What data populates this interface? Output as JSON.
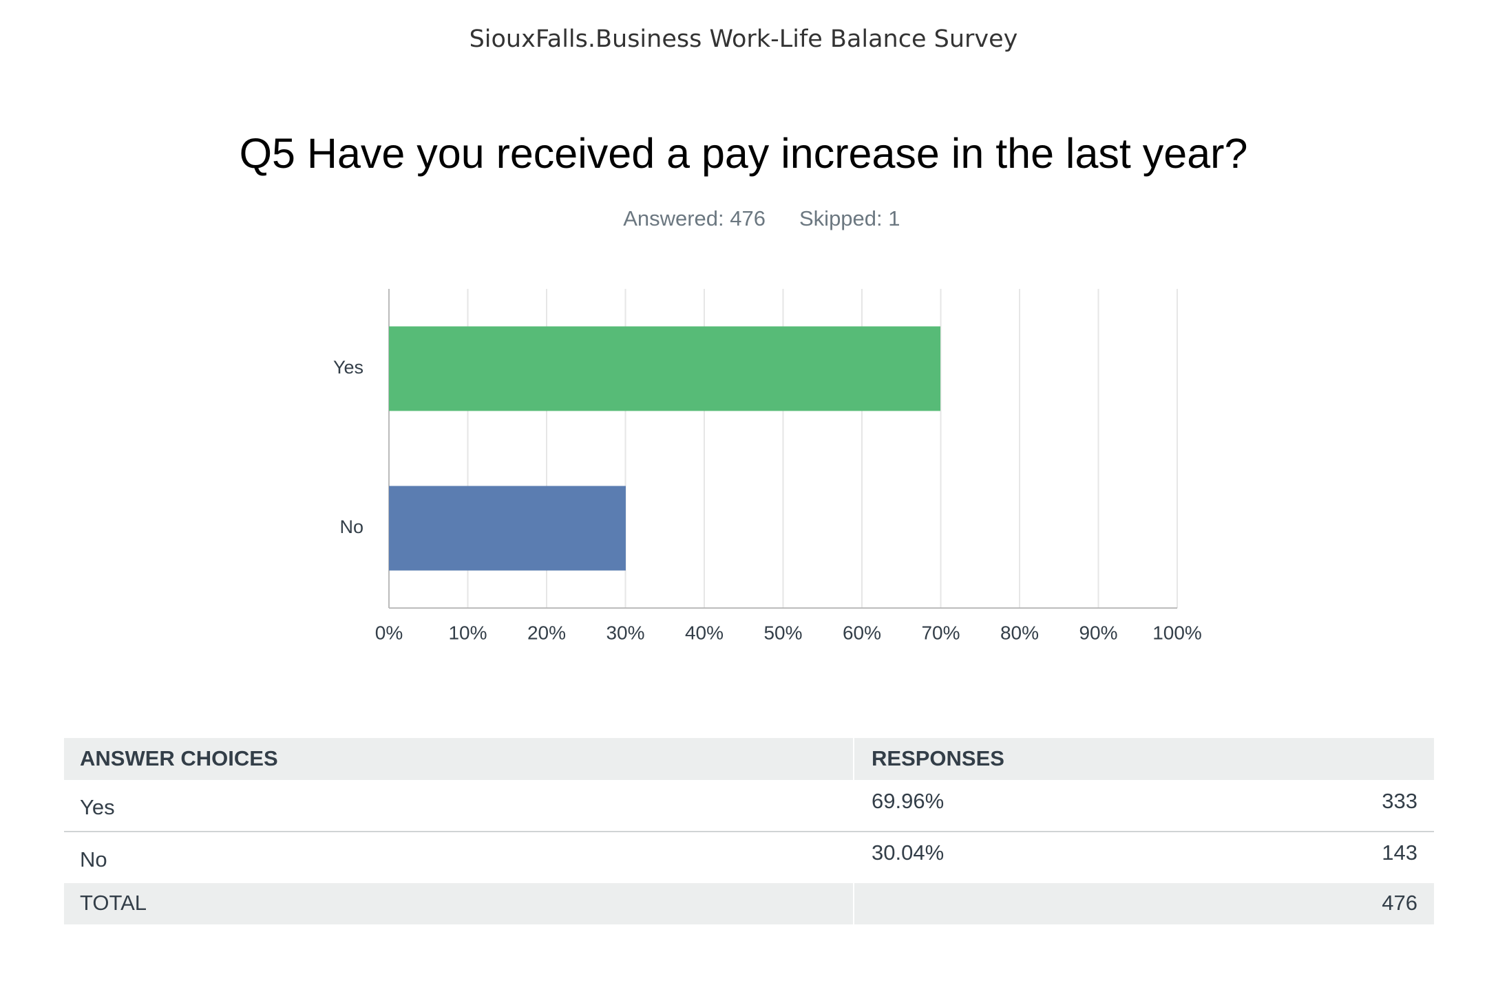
{
  "header": {
    "title": "SiouxFalls.Business Work-Life Balance Survey"
  },
  "question": {
    "title": "Q5 Have you received a pay increase in the last year?",
    "answered": "Answered: 476",
    "skipped": "Skipped: 1"
  },
  "chart_data": {
    "type": "bar",
    "orientation": "horizontal",
    "categories": [
      "Yes",
      "No"
    ],
    "values": [
      69.96,
      30.04
    ],
    "colors": [
      "#57bb77",
      "#5b7db1"
    ],
    "xlim": [
      0,
      100
    ],
    "xticks": [
      {
        "value": 0,
        "label": "0%"
      },
      {
        "value": 10,
        "label": "10%"
      },
      {
        "value": 20,
        "label": "20%"
      },
      {
        "value": 30,
        "label": "30%"
      },
      {
        "value": 40,
        "label": "40%"
      },
      {
        "value": 50,
        "label": "50%"
      },
      {
        "value": 60,
        "label": "60%"
      },
      {
        "value": 70,
        "label": "70%"
      },
      {
        "value": 80,
        "label": "80%"
      },
      {
        "value": 90,
        "label": "90%"
      },
      {
        "value": 100,
        "label": "100%"
      }
    ],
    "grid": true
  },
  "table": {
    "header": [
      "ANSWER CHOICES",
      "RESPONSES"
    ],
    "rows": [
      [
        "Yes",
        "69.96%",
        "333"
      ],
      [
        "No",
        "30.04%",
        "143"
      ]
    ],
    "total": [
      "TOTAL",
      "476"
    ]
  }
}
